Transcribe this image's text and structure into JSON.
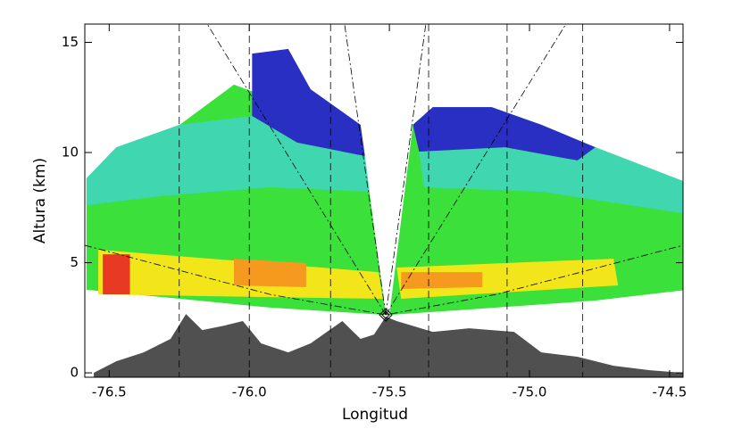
{
  "chart_data": {
    "type": "radar_section",
    "xlabel": "Longitud",
    "ylabel": "Altura (km)",
    "xlim": [
      -76.587,
      -74.452
    ],
    "ylim": [
      -0.2,
      15.83
    ],
    "xticks": [
      -76.5,
      {
        "value": -76,
        "label": "-76.0"
      },
      -75.5,
      {
        "value": -75,
        "label": "-75.0"
      },
      -74.5
    ],
    "yticks": [
      0,
      5,
      10,
      15
    ],
    "radar": {
      "x": -75.513,
      "y": 2.63
    },
    "vertical_lines": [
      -76.25,
      -76.0,
      -75.71,
      -75.36,
      -75.08,
      -74.81
    ],
    "echoes": [
      {
        "color": "#3be03b",
        "x": [
          -76.581,
          -76.581,
          -76.474,
          -76.248,
          -76.055,
          -75.926,
          -75.603,
          -75.513,
          -75.926,
          -76.248
        ],
        "y": [
          3.77,
          8.83,
          10.24,
          11.26,
          13.08,
          12.47,
          11.26,
          2.63,
          2.96,
          3.36
        ]
      },
      {
        "color": "#3be03b",
        "x": [
          -75.5,
          -75.416,
          -75.345,
          -75.135,
          -74.958,
          -74.765,
          -74.435,
          -74.435,
          -74.765,
          -75.119
        ],
        "y": [
          2.63,
          11.26,
          12.06,
          12.06,
          11.26,
          10.24,
          8.62,
          3.77,
          3.28,
          2.96
        ]
      },
      {
        "color": "#3fd6b0",
        "x": [
          -76.474,
          -76.248,
          -75.99,
          -75.829,
          -75.587,
          -75.571,
          -75.926,
          -76.313,
          -76.581,
          -76.581
        ],
        "y": [
          10.24,
          11.26,
          11.66,
          10.45,
          9.84,
          8.22,
          8.42,
          8.02,
          7.61,
          8.83
        ]
      },
      {
        "color": "#3fd6b0",
        "x": [
          -75.394,
          -75.087,
          -74.829,
          -74.765,
          -74.435,
          -74.435,
          -74.958,
          -75.377
        ],
        "y": [
          10.04,
          10.24,
          9.64,
          10.24,
          8.62,
          7.21,
          8.22,
          8.42
        ]
      },
      {
        "color": "#2a2fc4",
        "x": [
          -75.99,
          -75.861,
          -75.781,
          -75.603,
          -75.587,
          -75.829,
          -75.99
        ],
        "y": [
          14.49,
          14.7,
          12.87,
          11.26,
          9.84,
          10.45,
          11.66
        ]
      },
      {
        "color": "#2a2fc4",
        "x": [
          -75.416,
          -75.345,
          -75.135,
          -74.958,
          -74.765,
          -74.829,
          -75.087,
          -75.394
        ],
        "y": [
          11.26,
          12.06,
          12.06,
          11.26,
          10.24,
          9.64,
          10.24,
          10.04
        ]
      },
      {
        "color": "#f2e61a",
        "x": [
          -76.539,
          -75.539,
          -75.523,
          -76.539
        ],
        "y": [
          5.59,
          4.57,
          3.36,
          3.56
        ]
      },
      {
        "color": "#f2e61a",
        "x": [
          -75.474,
          -74.7,
          -74.684,
          -75.458
        ],
        "y": [
          4.78,
          5.18,
          3.97,
          3.36
        ]
      },
      {
        "color": "#e83a22",
        "x": [
          -76.523,
          -76.426,
          -76.426,
          -76.523
        ],
        "y": [
          5.38,
          5.38,
          3.56,
          3.56
        ]
      },
      {
        "color": "#f59a1e",
        "x": [
          -76.055,
          -75.797,
          -75.797,
          -76.055
        ],
        "y": [
          5.18,
          4.98,
          3.89,
          3.97
        ]
      },
      {
        "color": "#f59a1e",
        "x": [
          -75.458,
          -75.168,
          -75.168,
          -75.458
        ],
        "y": [
          4.57,
          4.57,
          3.89,
          3.81
        ]
      }
    ],
    "beams": [
      {
        "x": [
          -75.513,
          -76.15
        ],
        "y": [
          2.63,
          15.83
        ]
      },
      {
        "x": [
          -75.513,
          -75.66
        ],
        "y": [
          2.63,
          15.83
        ]
      },
      {
        "x": [
          -75.513,
          -75.37
        ],
        "y": [
          2.63,
          15.83
        ]
      },
      {
        "x": [
          -75.513,
          -74.87
        ],
        "y": [
          2.63,
          15.83
        ]
      },
      {
        "x": [
          -76.587,
          -75.926,
          -75.513,
          -75.119,
          -74.452
        ],
        "y": [
          5.79,
          3.56,
          2.63,
          3.56,
          5.79
        ]
      }
    ],
    "terrain": {
      "color": "#505050",
      "x": [
        -76.555,
        -76.474,
        -76.377,
        -76.281,
        -76.226,
        -76.168,
        -76.087,
        -76.023,
        -75.958,
        -75.861,
        -75.781,
        -75.668,
        -75.603,
        -75.555,
        -75.513,
        -75.474,
        -75.345,
        -75.216,
        -75.055,
        -74.958,
        -74.829,
        -74.7,
        -74.571,
        -74.452
      ],
      "y": [
        0,
        0.53,
        0.93,
        1.54,
        2.67,
        1.94,
        2.15,
        2.35,
        1.34,
        0.93,
        1.34,
        2.35,
        1.54,
        1.74,
        2.55,
        2.35,
        1.86,
        2.02,
        1.86,
        0.93,
        0.73,
        0.32,
        0.12,
        0
      ]
    }
  }
}
